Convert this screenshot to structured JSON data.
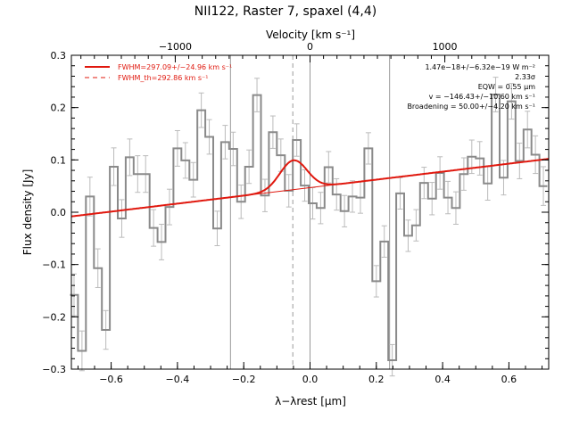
{
  "chart_data": {
    "type": "line",
    "title": "NII122, Raster 7, spaxel (4,4)",
    "xlabel": "λ−λrest [μm]",
    "ylabel": "Flux density [Jy]",
    "top_xlabel": "Velocity [km s⁻¹]",
    "xlim": [
      -0.72,
      0.72
    ],
    "ylim": [
      -0.3,
      0.3
    ],
    "xticks": [
      -0.6,
      -0.4,
      -0.2,
      0.0,
      0.2,
      0.4,
      0.6
    ],
    "xtick_labels": [
      "−0.6",
      "−0.4",
      "−0.2",
      "0.0",
      "0.2",
      "0.4",
      "0.6"
    ],
    "yticks": [
      -0.3,
      -0.2,
      -0.1,
      0.0,
      0.1,
      0.2,
      0.3
    ],
    "ytick_labels": [
      "−0.3",
      "−0.2",
      "−0.1",
      "0.0",
      "0.1",
      "0.2",
      "0.3"
    ],
    "top_xticks_kms": [
      -1000,
      0,
      1000
    ],
    "top_xtick_labels": [
      "−1000",
      "0",
      "1000"
    ],
    "grid": false,
    "legend_position": "top-left",
    "series": [
      {
        "name": "FWHM=297.09+/−24.96 km s⁻¹",
        "style": "solid",
        "color": "#e0180e",
        "kind": "model",
        "continuum": [
          [
            -0.72,
            -0.008
          ],
          [
            0.72,
            0.102
          ]
        ],
        "gaussian": {
          "center": -0.05,
          "amplitude": 0.056,
          "sigma": 0.041
        }
      },
      {
        "name": "FWHM_th=292.86 km s⁻¹",
        "style": "dashed",
        "color": "#e0180e",
        "kind": "legend-only"
      },
      {
        "name": "spectrum",
        "kind": "step",
        "color": "#888888",
        "x": [
          -0.712,
          -0.688,
          -0.664,
          -0.64,
          -0.616,
          -0.592,
          -0.568,
          -0.544,
          -0.52,
          -0.496,
          -0.472,
          -0.448,
          -0.424,
          -0.4,
          -0.376,
          -0.352,
          -0.328,
          -0.304,
          -0.28,
          -0.256,
          -0.232,
          -0.208,
          -0.184,
          -0.16,
          -0.136,
          -0.112,
          -0.088,
          -0.064,
          -0.04,
          -0.016,
          0.008,
          0.032,
          0.056,
          0.08,
          0.104,
          0.128,
          0.152,
          0.176,
          0.2,
          0.224,
          0.248,
          0.272,
          0.296,
          0.32,
          0.344,
          0.368,
          0.392,
          0.416,
          0.44,
          0.464,
          0.488,
          0.512,
          0.536,
          0.56,
          0.584,
          0.608,
          0.632,
          0.656,
          0.68,
          0.704
        ],
        "y": [
          -0.158,
          -0.265,
          0.03,
          -0.107,
          -0.225,
          0.087,
          -0.012,
          0.105,
          0.073,
          0.073,
          -0.03,
          -0.057,
          0.01,
          0.122,
          0.099,
          0.062,
          0.195,
          0.144,
          -0.031,
          0.134,
          0.121,
          0.02,
          0.087,
          0.224,
          0.032,
          0.153,
          0.109,
          0.041,
          0.138,
          0.051,
          0.017,
          0.008,
          0.086,
          0.034,
          0.002,
          0.03,
          0.028,
          0.122,
          -0.132,
          -0.056,
          -0.283,
          0.036,
          -0.045,
          -0.025,
          0.056,
          0.026,
          0.075,
          0.028,
          0.008,
          0.073,
          0.106,
          0.103,
          0.055,
          0.225,
          0.066,
          0.212,
          0.098,
          0.158,
          0.11,
          0.05
        ],
        "err": [
          0.04,
          0.038,
          0.037,
          0.037,
          0.037,
          0.036,
          0.036,
          0.035,
          0.035,
          0.035,
          0.035,
          0.034,
          0.034,
          0.034,
          0.034,
          0.033,
          0.033,
          0.033,
          0.033,
          0.032,
          0.032,
          0.032,
          0.032,
          0.032,
          0.031,
          0.031,
          0.031,
          0.031,
          0.031,
          0.03,
          0.03,
          0.03,
          0.03,
          0.03,
          0.03,
          0.03,
          0.03,
          0.03,
          0.03,
          0.03,
          0.03,
          0.03,
          0.03,
          0.03,
          0.03,
          0.031,
          0.031,
          0.031,
          0.031,
          0.031,
          0.032,
          0.032,
          0.032,
          0.033,
          0.033,
          0.034,
          0.034,
          0.035,
          0.036,
          0.037
        ]
      }
    ],
    "vertical_lines": [
      {
        "x": -0.24,
        "style": "solid",
        "color": "#999999"
      },
      {
        "x": 0.0,
        "style": "solid",
        "color": "#999999"
      },
      {
        "x": 0.24,
        "style": "solid",
        "color": "#999999"
      },
      {
        "x": -0.052,
        "style": "dashed",
        "color": "#999999"
      }
    ],
    "annotations": [
      "1.47e−18+/−6.32e−19 W m⁻²",
      "2.33σ",
      "EQW = 0.55 μm",
      "v = −146.43+/−10.60 km s⁻¹",
      "Broadening = 50.00+/−4.20 km s⁻¹"
    ]
  }
}
